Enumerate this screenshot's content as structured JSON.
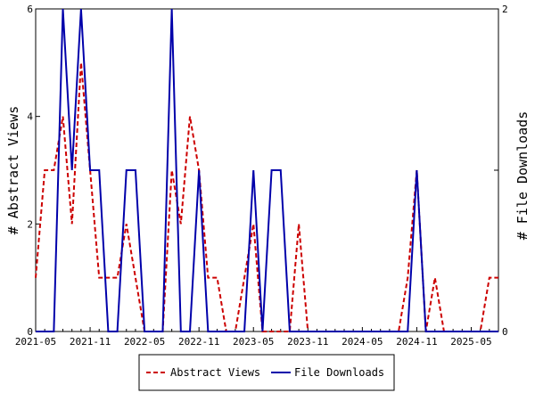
{
  "chart_data": {
    "type": "line",
    "xlabel": "",
    "ylabel_left": "# Abstract Views",
    "ylabel_right": "# File Downloads",
    "x_tick_labels": [
      "2021-05",
      "2021-11",
      "2022-05",
      "2022-11",
      "2023-05",
      "2023-11",
      "2024-05",
      "2024-11",
      "2025-05"
    ],
    "y_left_ticks": [
      "0",
      "2",
      "4",
      "6"
    ],
    "y_right_ticks": [
      "0",
      "1",
      "2"
    ],
    "ylim_left": [
      0,
      6
    ],
    "ylim_right": [
      0,
      2
    ],
    "x": [
      "2021-05",
      "2021-06",
      "2021-07",
      "2021-08",
      "2021-09",
      "2021-10",
      "2021-11",
      "2021-12",
      "2022-01",
      "2022-02",
      "2022-03",
      "2022-04",
      "2022-05",
      "2022-06",
      "2022-07",
      "2022-08",
      "2022-09",
      "2022-10",
      "2022-11",
      "2022-12",
      "2023-01",
      "2023-02",
      "2023-03",
      "2023-04",
      "2023-05",
      "2023-06",
      "2023-07",
      "2023-08",
      "2023-09",
      "2023-10",
      "2023-11",
      "2023-12",
      "2024-01",
      "2024-02",
      "2024-03",
      "2024-04",
      "2024-05",
      "2024-06",
      "2024-07",
      "2024-08",
      "2024-09",
      "2024-10",
      "2024-11",
      "2024-12",
      "2025-01",
      "2025-02",
      "2025-03",
      "2025-04",
      "2025-05",
      "2025-06",
      "2025-07",
      "2025-08"
    ],
    "series": [
      {
        "name": "Abstract Views",
        "axis": "left",
        "color": "#cc0000",
        "dash": "dashed",
        "values": [
          1,
          3,
          3,
          4,
          2,
          5,
          3,
          1,
          1,
          1,
          2,
          1,
          0,
          0,
          0,
          3,
          2,
          4,
          3,
          1,
          1,
          0,
          0,
          1,
          2,
          0,
          0,
          0,
          0,
          2,
          0,
          0,
          0,
          0,
          0,
          0,
          0,
          0,
          0,
          0,
          0,
          1,
          3,
          0,
          1,
          0,
          0,
          0,
          0,
          0,
          1,
          1
        ]
      },
      {
        "name": "File Downloads",
        "axis": "right",
        "color": "#0000aa",
        "dash": "solid",
        "values": [
          0,
          0,
          0,
          2,
          1,
          2,
          1,
          1,
          0,
          0,
          1,
          1,
          0,
          0,
          0,
          2,
          0,
          0,
          1,
          0,
          0,
          0,
          0,
          0,
          1,
          0,
          1,
          1,
          0,
          0,
          0,
          0,
          0,
          0,
          0,
          0,
          0,
          0,
          0,
          0,
          0,
          0,
          1,
          0,
          0,
          0,
          0,
          0,
          0,
          0,
          0,
          0
        ]
      }
    ],
    "legend_position": "bottom",
    "grid": false
  }
}
